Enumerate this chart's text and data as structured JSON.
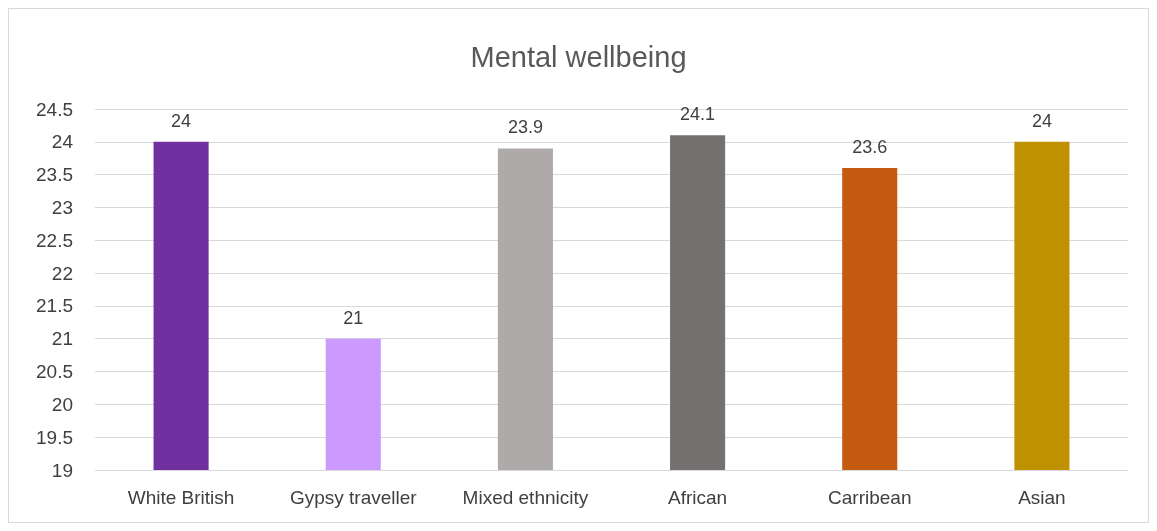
{
  "chart_data": {
    "type": "bar",
    "title": "Mental wellbeing",
    "categories": [
      "White British",
      "Gypsy traveller",
      "Mixed ethnicity",
      "African",
      "Carribean",
      "Asian"
    ],
    "values": [
      24,
      21,
      23.9,
      24.1,
      23.6,
      24
    ],
    "colors": [
      "#7030a0",
      "#cc99ff",
      "#aeaaaa",
      "#767171",
      "#c55a11",
      "#bf9000"
    ],
    "ylim": [
      19,
      24.5
    ],
    "yticks": [
      19,
      19.5,
      20,
      20.5,
      21,
      21.5,
      22,
      22.5,
      23,
      23.5,
      24,
      24.5
    ],
    "grid": "y",
    "data_labels": true
  }
}
